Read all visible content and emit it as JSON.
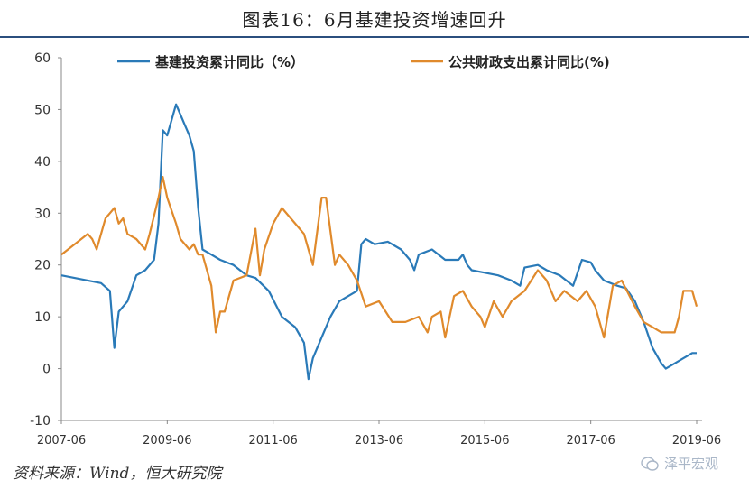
{
  "header": {
    "title": "图表16：6月基建投资增速回升"
  },
  "footer": {
    "source": "资料来源：Wind，恒大研究院",
    "watermark": "泽平宏观"
  },
  "chart_data": {
    "type": "line",
    "title": "图表16：6月基建投资增速回升",
    "ylim": [
      -10,
      60
    ],
    "yticks": [
      -10,
      0,
      10,
      20,
      30,
      40,
      50,
      60
    ],
    "x_range": [
      "2007-06",
      "2019-06"
    ],
    "xticks": [
      "2007-06",
      "2009-06",
      "2011-06",
      "2013-06",
      "2015-06",
      "2017-06",
      "2019-06"
    ],
    "legend_position": "top",
    "grid": false,
    "series": [
      {
        "name": "基建投资累计同比（%）",
        "color": "#2a7ab8",
        "points": [
          [
            "2007-06",
            18
          ],
          [
            "2007-09",
            17.5
          ],
          [
            "2007-12",
            17
          ],
          [
            "2008-03",
            16.5
          ],
          [
            "2008-05",
            15
          ],
          [
            "2008-06",
            4
          ],
          [
            "2008-07",
            11
          ],
          [
            "2008-09",
            13
          ],
          [
            "2008-11",
            18
          ],
          [
            "2009-01",
            19
          ],
          [
            "2009-03",
            21
          ],
          [
            "2009-04",
            28
          ],
          [
            "2009-05",
            46
          ],
          [
            "2009-06",
            45
          ],
          [
            "2009-07",
            48
          ],
          [
            "2009-08",
            51
          ],
          [
            "2009-09",
            49
          ],
          [
            "2009-10",
            47
          ],
          [
            "2009-11",
            45
          ],
          [
            "2009-12",
            42
          ],
          [
            "2010-01",
            31
          ],
          [
            "2010-02",
            23
          ],
          [
            "2010-04",
            22
          ],
          [
            "2010-06",
            21
          ],
          [
            "2010-09",
            20
          ],
          [
            "2010-12",
            18
          ],
          [
            "2011-02",
            17.5
          ],
          [
            "2011-05",
            15
          ],
          [
            "2011-08",
            10
          ],
          [
            "2011-11",
            8
          ],
          [
            "2012-01",
            5
          ],
          [
            "2012-02",
            -2
          ],
          [
            "2012-03",
            2
          ],
          [
            "2012-05",
            6
          ],
          [
            "2012-07",
            10
          ],
          [
            "2012-09",
            13
          ],
          [
            "2012-11",
            14
          ],
          [
            "2013-01",
            15
          ],
          [
            "2013-02",
            24
          ],
          [
            "2013-03",
            25
          ],
          [
            "2013-05",
            24
          ],
          [
            "2013-08",
            24.5
          ],
          [
            "2013-11",
            23
          ],
          [
            "2014-01",
            21
          ],
          [
            "2014-02",
            19
          ],
          [
            "2014-03",
            22
          ],
          [
            "2014-06",
            23
          ],
          [
            "2014-09",
            21
          ],
          [
            "2014-12",
            21
          ],
          [
            "2015-01",
            22
          ],
          [
            "2015-02",
            20
          ],
          [
            "2015-03",
            19
          ],
          [
            "2015-06",
            18.5
          ],
          [
            "2015-09",
            18
          ],
          [
            "2015-12",
            17
          ],
          [
            "2016-02",
            16
          ],
          [
            "2016-03",
            19.5
          ],
          [
            "2016-06",
            20
          ],
          [
            "2016-08",
            19
          ],
          [
            "2016-11",
            18
          ],
          [
            "2017-02",
            16
          ],
          [
            "2017-04",
            21
          ],
          [
            "2017-06",
            20.5
          ],
          [
            "2017-07",
            19
          ],
          [
            "2017-09",
            17
          ],
          [
            "2017-12",
            16
          ],
          [
            "2018-02",
            15.5
          ],
          [
            "2018-04",
            13
          ],
          [
            "2018-06",
            9
          ],
          [
            "2018-08",
            4
          ],
          [
            "2018-10",
            1
          ],
          [
            "2018-11",
            0
          ],
          [
            "2019-01",
            1
          ],
          [
            "2019-03",
            2
          ],
          [
            "2019-05",
            3
          ],
          [
            "2019-06",
            3
          ]
        ]
      },
      {
        "name": "公共财政支出累计同比(%)",
        "color": "#e08a2c",
        "points": [
          [
            "2007-06",
            22
          ],
          [
            "2007-09",
            24
          ],
          [
            "2007-12",
            26
          ],
          [
            "2008-01",
            25
          ],
          [
            "2008-02",
            23
          ],
          [
            "2008-04",
            29
          ],
          [
            "2008-05",
            30
          ],
          [
            "2008-06",
            31
          ],
          [
            "2008-07",
            28
          ],
          [
            "2008-08",
            29
          ],
          [
            "2008-09",
            26
          ],
          [
            "2008-11",
            25
          ],
          [
            "2009-01",
            23
          ],
          [
            "2009-02",
            26
          ],
          [
            "2009-04",
            33
          ],
          [
            "2009-05",
            37
          ],
          [
            "2009-06",
            33
          ],
          [
            "2009-08",
            28
          ],
          [
            "2009-09",
            25
          ],
          [
            "2009-11",
            23
          ],
          [
            "2009-12",
            24
          ],
          [
            "2010-01",
            22
          ],
          [
            "2010-02",
            22
          ],
          [
            "2010-03",
            19
          ],
          [
            "2010-04",
            16
          ],
          [
            "2010-05",
            7
          ],
          [
            "2010-06",
            11
          ],
          [
            "2010-07",
            11
          ],
          [
            "2010-09",
            17
          ],
          [
            "2010-12",
            18
          ],
          [
            "2011-02",
            27
          ],
          [
            "2011-03",
            18
          ],
          [
            "2011-04",
            23
          ],
          [
            "2011-06",
            28
          ],
          [
            "2011-08",
            31
          ],
          [
            "2011-10",
            29
          ],
          [
            "2011-12",
            27
          ],
          [
            "2012-01",
            26
          ],
          [
            "2012-03",
            20
          ],
          [
            "2012-05",
            33
          ],
          [
            "2012-06",
            33
          ],
          [
            "2012-08",
            20
          ],
          [
            "2012-09",
            22
          ],
          [
            "2012-11",
            20
          ],
          [
            "2013-01",
            17
          ],
          [
            "2013-03",
            12
          ],
          [
            "2013-06",
            13
          ],
          [
            "2013-09",
            9
          ],
          [
            "2013-12",
            9
          ],
          [
            "2014-03",
            10
          ],
          [
            "2014-05",
            7
          ],
          [
            "2014-06",
            10
          ],
          [
            "2014-08",
            11
          ],
          [
            "2014-09",
            6
          ],
          [
            "2014-11",
            14
          ],
          [
            "2015-01",
            15
          ],
          [
            "2015-03",
            12
          ],
          [
            "2015-05",
            10
          ],
          [
            "2015-06",
            8
          ],
          [
            "2015-08",
            13
          ],
          [
            "2015-10",
            10
          ],
          [
            "2015-12",
            13
          ],
          [
            "2016-03",
            15
          ],
          [
            "2016-06",
            19
          ],
          [
            "2016-08",
            17
          ],
          [
            "2016-10",
            13
          ],
          [
            "2016-12",
            15
          ],
          [
            "2017-03",
            13
          ],
          [
            "2017-05",
            15
          ],
          [
            "2017-07",
            12
          ],
          [
            "2017-09",
            6
          ],
          [
            "2017-11",
            16
          ],
          [
            "2018-01",
            17
          ],
          [
            "2018-04",
            12
          ],
          [
            "2018-06",
            9
          ],
          [
            "2018-08",
            8
          ],
          [
            "2018-10",
            7
          ],
          [
            "2018-12",
            7
          ],
          [
            "2019-01",
            7
          ],
          [
            "2019-02",
            10
          ],
          [
            "2019-03",
            15
          ],
          [
            "2019-05",
            15
          ],
          [
            "2019-06",
            12
          ]
        ]
      }
    ]
  }
}
